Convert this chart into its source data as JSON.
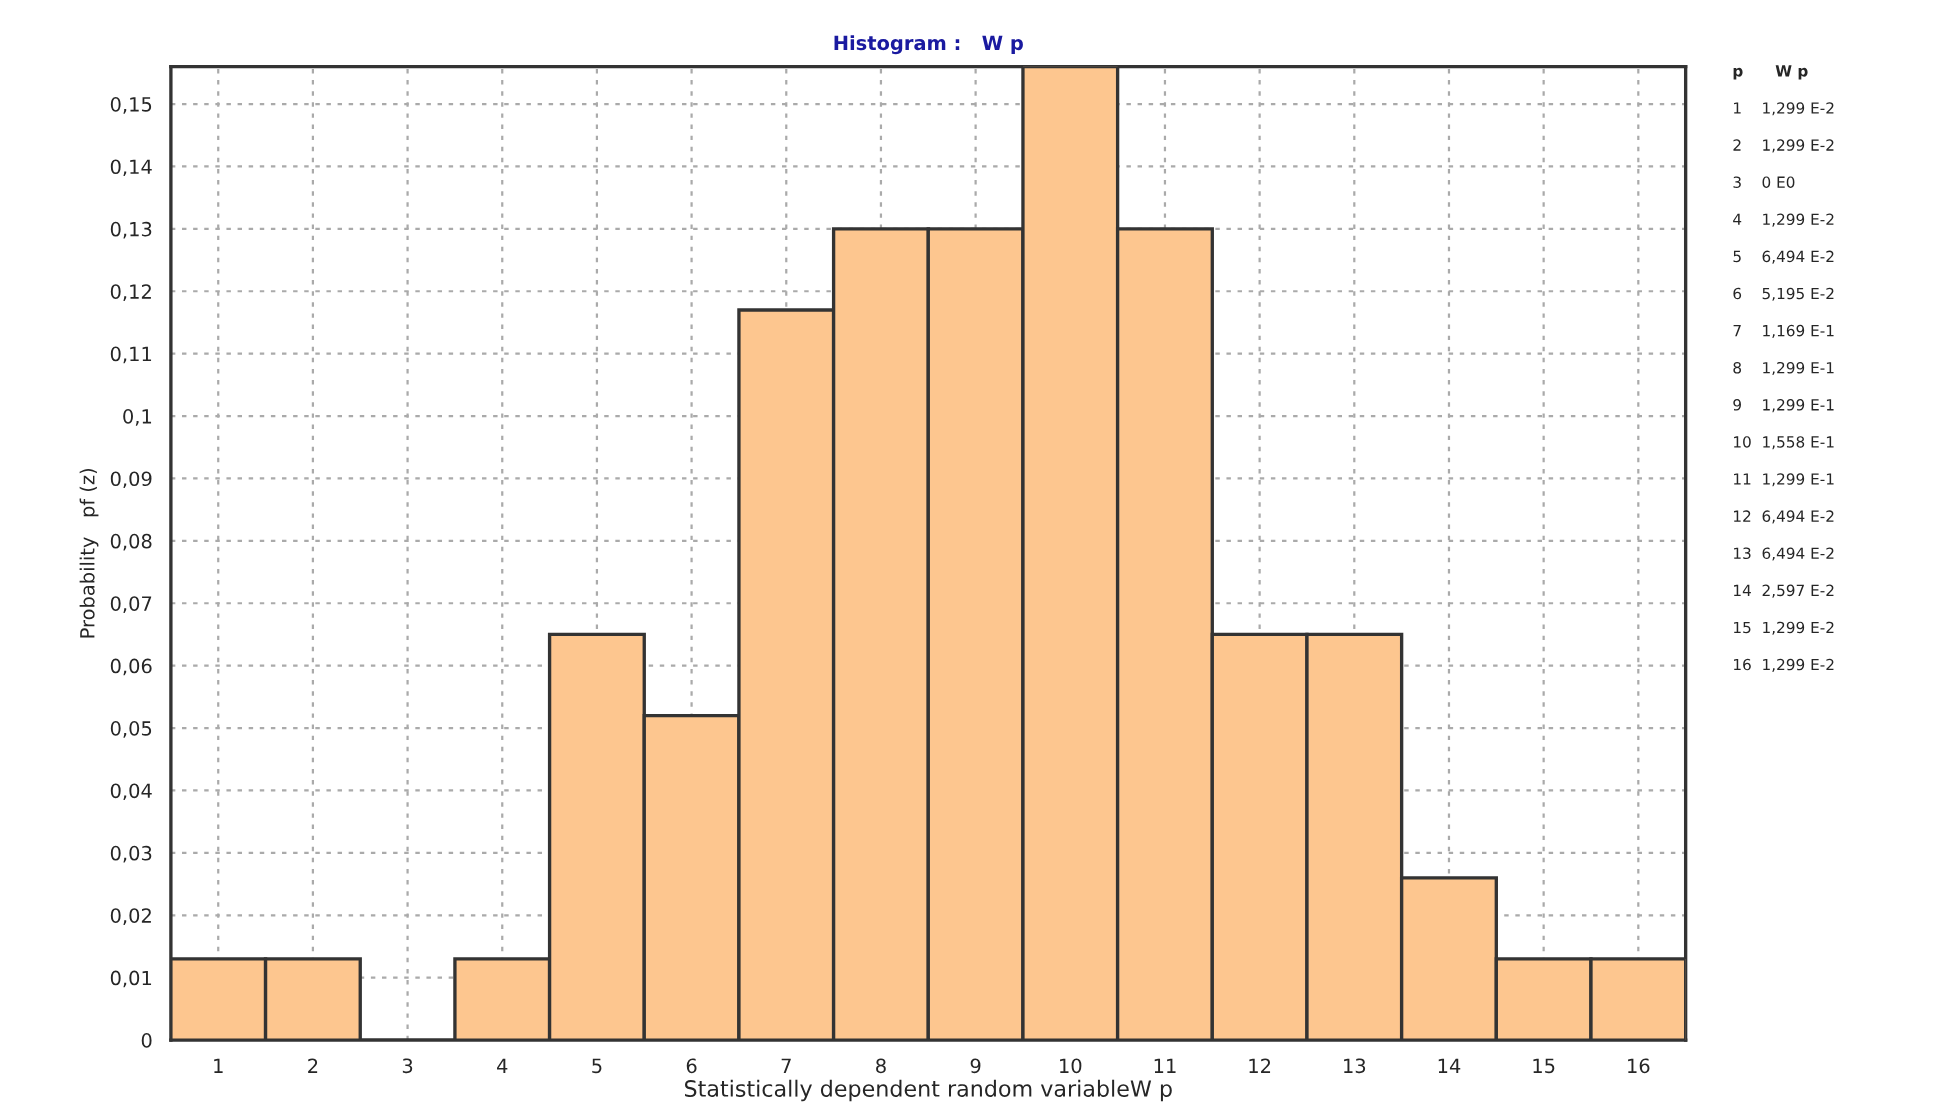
{
  "chart_data": [
    {
      "type": "histogram",
      "title": "Histogram :   W p",
      "xlabel": "Statistically dependent random variableW p",
      "ylabel": "Probability   pf (z)",
      "bins": [
        0.5,
        1.5,
        2.5,
        3.5,
        4.5,
        5.5,
        6.5,
        7.5,
        8.5,
        9.5,
        10.5,
        11.5,
        12.5,
        13.5,
        14.5,
        15.5,
        16.5
      ],
      "values": [
        0.013,
        0.013,
        0,
        0.013,
        0.065,
        0.052,
        0.117,
        0.13,
        0.13,
        0.156,
        0.13,
        0.065,
        0.065,
        0.026,
        0.013,
        0.013
      ],
      "color": "#fdc68f",
      "xlim": [
        0.5,
        16.5
      ],
      "xticks": [
        1,
        2,
        3,
        4,
        5,
        6,
        7,
        8,
        9,
        10,
        11,
        12,
        13,
        14,
        15,
        16
      ],
      "ylim": [
        0,
        0.156
      ],
      "yticks": [
        0,
        {
          "value": 0.01,
          "label": "0,01"
        },
        {
          "value": 0.02,
          "label": "0,02"
        },
        {
          "value": 0.03,
          "label": "0,03"
        },
        {
          "value": 0.04,
          "label": "0,04"
        },
        {
          "value": 0.05,
          "label": "0,05"
        },
        {
          "value": 0.06,
          "label": "0,06"
        },
        {
          "value": 0.07,
          "label": "0,07"
        },
        {
          "value": 0.08,
          "label": "0,08"
        },
        {
          "value": 0.09,
          "label": "0,09"
        },
        {
          "value": 0.1,
          "label": "0,1"
        },
        {
          "value": 0.11,
          "label": "0,11"
        },
        {
          "value": 0.12,
          "label": "0,12"
        },
        {
          "value": 0.13,
          "label": "0,13"
        },
        {
          "value": 0.14,
          "label": "0,14"
        },
        {
          "value": 0.15,
          "label": "0,15"
        }
      ],
      "grid": true
    },
    {
      "type": "other",
      "annotations": [
        "p      W p",
        "1    1,299 E-2",
        "2    1,299 E-2",
        "3    0 E0",
        "4    1,299 E-2",
        "5    6,494 E-2",
        "6    5,195 E-2",
        "7    1,169 E-1",
        "8    1,299 E-1",
        "9    1,299 E-1",
        "10  1,558 E-1",
        "11  1,299 E-1",
        "12  6,494 E-2",
        "13  6,494 E-2",
        "14  2,597 E-2",
        "15  1,299 E-2",
        "16  1,299 E-2"
      ]
    }
  ]
}
